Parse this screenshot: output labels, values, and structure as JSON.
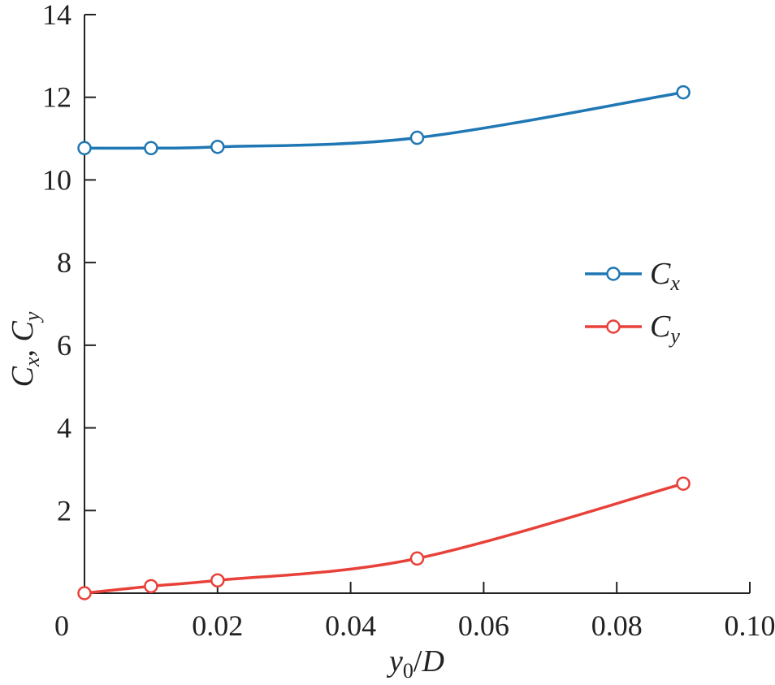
{
  "chart_data": {
    "type": "line",
    "title": "",
    "xlabel": "y0/D",
    "ylabel": "Cx, Cy",
    "xlim": [
      0,
      0.1
    ],
    "ylim": [
      0,
      14
    ],
    "x_ticks": [
      "0",
      "0.02",
      "0.04",
      "0.06",
      "0.08",
      "0.10"
    ],
    "x_tick_values": [
      0,
      0.02,
      0.04,
      0.06,
      0.08,
      0.1
    ],
    "y_ticks": [
      "2",
      "4",
      "6",
      "8",
      "10",
      "12",
      "14"
    ],
    "y_tick_values": [
      2,
      4,
      6,
      8,
      10,
      12,
      14
    ],
    "grid": false,
    "legend_position": "right-middle",
    "x": [
      0,
      0.01,
      0.02,
      0.05,
      0.09
    ],
    "series": [
      {
        "name": "Cx",
        "main": "C",
        "sub": "x",
        "color": "#1f77b4",
        "marker": "open-circle",
        "values": [
          10.77,
          10.77,
          10.8,
          11.02,
          12.12
        ]
      },
      {
        "name": "Cy",
        "main": "C",
        "sub": "y",
        "color": "#e8413a",
        "marker": "open-circle",
        "values": [
          0.0,
          0.17,
          0.31,
          0.84,
          2.65
        ]
      }
    ]
  }
}
